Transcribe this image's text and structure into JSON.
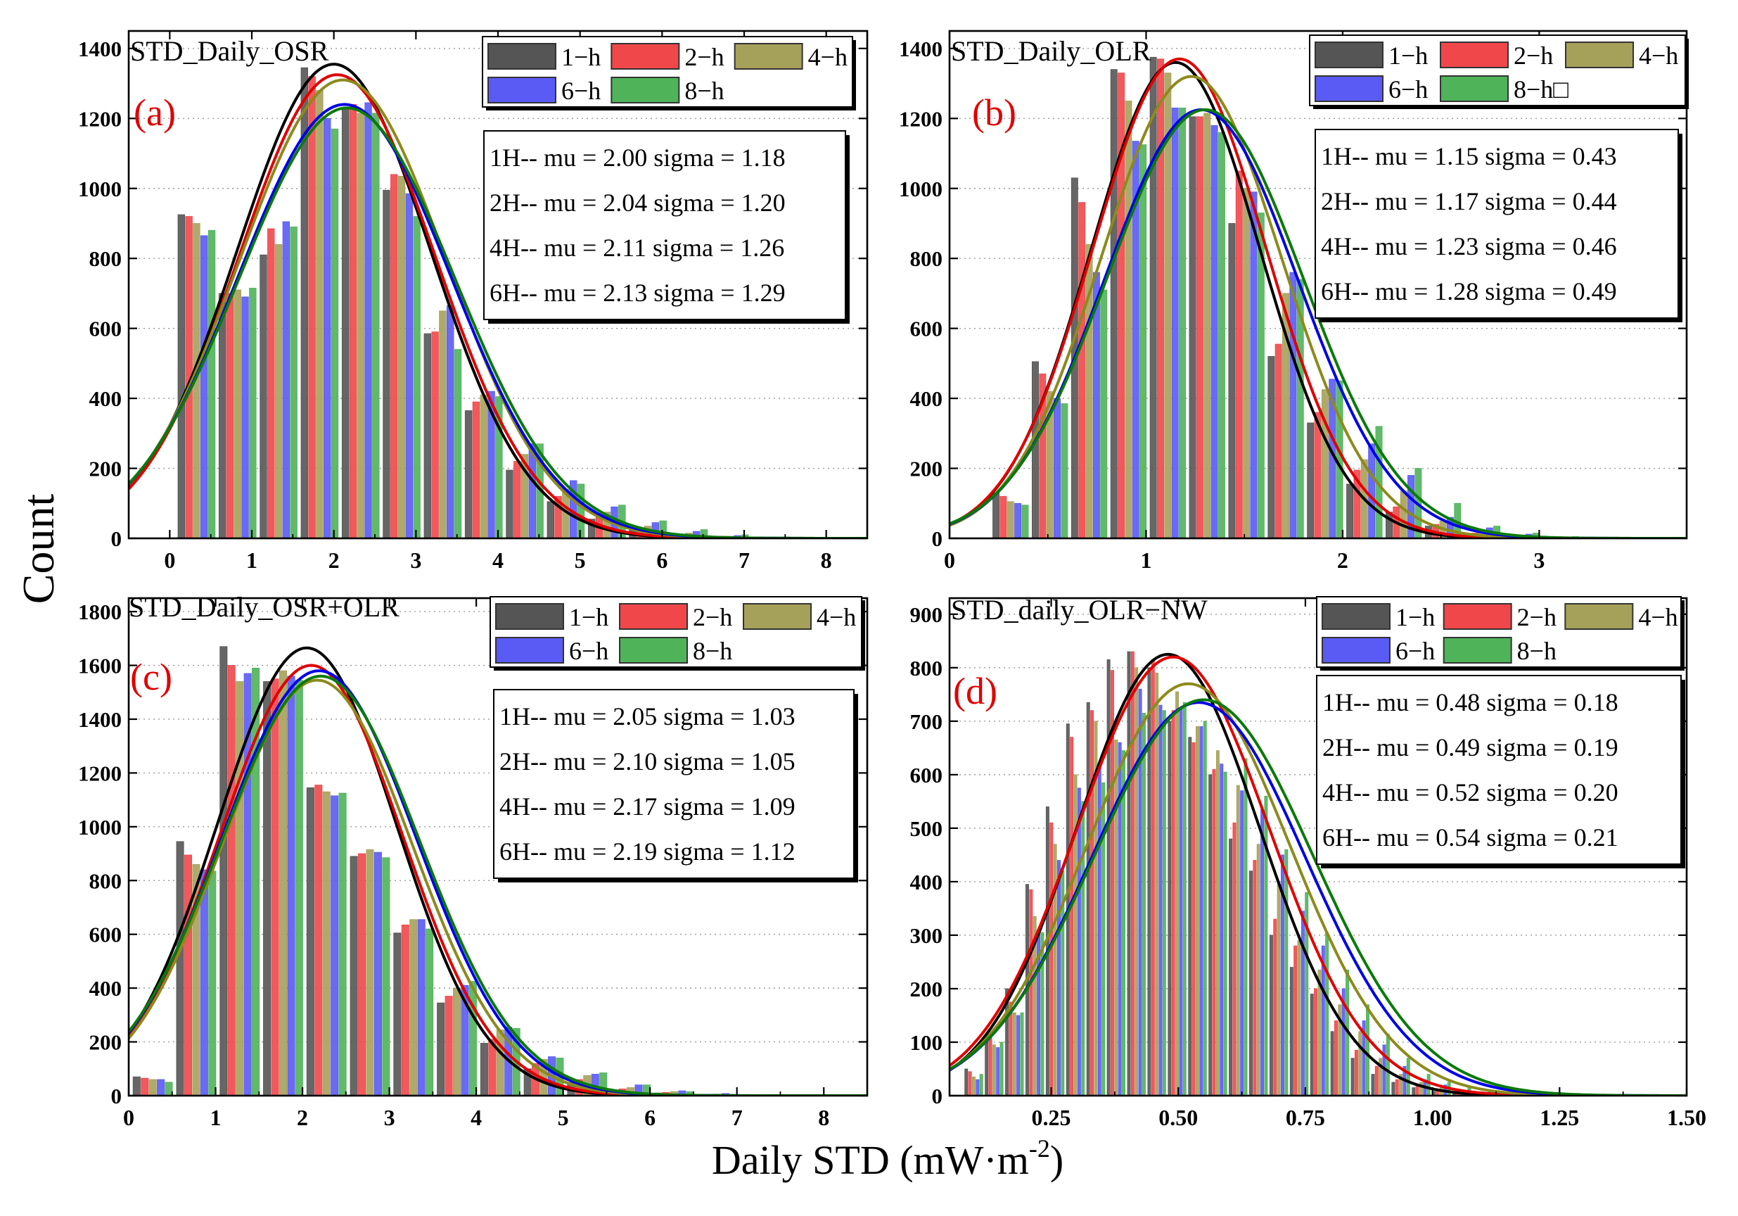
{
  "figure": {
    "ylabel": "Count",
    "xlabel_main": "Daily STD (mW·m",
    "xlabel_sup": "-2",
    "xlabel_close": ")"
  },
  "colors": {
    "1-h": "#555555",
    "2-h": "#f0474b",
    "4-h": "#a6a15a",
    "6-h": "#5a5af4",
    "8-h": "#4fb35a",
    "curve_1H": "#000000",
    "curve_2H": "#e00000",
    "curve_4H": "#8c8a1c",
    "curve_6H": "#0000e6",
    "curve_8H": "#0a7a0a",
    "panel_letter": "#e00000"
  },
  "chart_data": [
    {
      "type": "bar",
      "id": "a",
      "title": "STD_Daily_OSR",
      "panel_label": "(a)",
      "legend": [
        "1−h",
        "2−h",
        "4−h",
        "6−h",
        "8−h"
      ],
      "xlim": [
        -0.5,
        8.5
      ],
      "ylim": [
        0,
        1450
      ],
      "xticks": [
        0,
        1,
        2,
        3,
        4,
        5,
        6,
        7,
        8
      ],
      "xtick_labels": [
        "0",
        "1",
        "2",
        "3",
        "4",
        "5",
        "6",
        "7",
        "8"
      ],
      "yticks": [
        0,
        200,
        400,
        600,
        800,
        1000,
        1200,
        1400
      ],
      "ytick_labels": [
        "0",
        "200",
        "400",
        "600",
        "800",
        "1000",
        "1200",
        "1400"
      ],
      "bin_width": 0.5,
      "bins": [
        0.1,
        0.6,
        1.1,
        1.6,
        2.1,
        2.6,
        3.1,
        3.6,
        4.1,
        4.6,
        5.1,
        5.6,
        6.1,
        6.6,
        7.1,
        7.6,
        8.1
      ],
      "series": [
        {
          "name": "1-h",
          "values": [
            925,
            700,
            810,
            1345,
            1230,
            995,
            585,
            365,
            195,
            105,
            55,
            25,
            10,
            5,
            3,
            1,
            0
          ]
        },
        {
          "name": "2-h",
          "values": [
            920,
            700,
            885,
            1320,
            1240,
            1040,
            590,
            390,
            220,
            120,
            60,
            30,
            12,
            6,
            3,
            1,
            0
          ]
        },
        {
          "name": "4-h",
          "values": [
            900,
            710,
            840,
            1280,
            1215,
            1035,
            650,
            410,
            240,
            140,
            75,
            35,
            15,
            6,
            3,
            1,
            0
          ]
        },
        {
          "name": "6-h",
          "values": [
            865,
            690,
            905,
            1200,
            1245,
            985,
            665,
            420,
            270,
            165,
            90,
            45,
            20,
            8,
            3,
            1,
            0
          ]
        },
        {
          "name": "8-h",
          "values": [
            880,
            715,
            890,
            1170,
            1215,
            920,
            540,
            405,
            270,
            155,
            95,
            50,
            25,
            10,
            4,
            1,
            0
          ]
        }
      ],
      "fit_params": [
        {
          "name": "1H",
          "mu": 2.0,
          "sigma": 1.18,
          "peak": 1355
        },
        {
          "name": "2H",
          "mu": 2.04,
          "sigma": 1.2,
          "peak": 1325
        },
        {
          "name": "4H",
          "mu": 2.11,
          "sigma": 1.26,
          "peak": 1310
        },
        {
          "name": "6H",
          "mu": 2.13,
          "sigma": 1.29,
          "peak": 1240
        },
        {
          "name": "8H",
          "mu": 2.16,
          "sigma": 1.31,
          "peak": 1230
        }
      ],
      "stats_text": [
        "1H-- mu = 2.00  sigma = 1.18",
        "2H-- mu = 2.04 sigma = 1.20",
        "4H-- mu = 2.11 sigma = 1.26",
        "6H-- mu = 2.13 sigma = 1.29"
      ]
    },
    {
      "type": "bar",
      "id": "b",
      "title": "STD_Daily_OLR",
      "panel_label": "(b)",
      "legend": [
        "1−h",
        "2−h",
        "4−h",
        "6−h",
        "8−h□"
      ],
      "xlim": [
        0,
        3.75
      ],
      "ylim": [
        0,
        1450
      ],
      "xticks": [
        0,
        1,
        2,
        3
      ],
      "xtick_labels": [
        "0",
        "1",
        "2",
        "3"
      ],
      "yticks": [
        0,
        200,
        400,
        600,
        800,
        1000,
        1200,
        1400
      ],
      "ytick_labels": [
        "0",
        "200",
        "400",
        "600",
        "800",
        "1000",
        "1200",
        "1400"
      ],
      "bin_width": 0.2,
      "bins": [
        0.22,
        0.42,
        0.62,
        0.82,
        1.02,
        1.22,
        1.42,
        1.62,
        1.82,
        2.02,
        2.22,
        2.42,
        2.62,
        2.82,
        3.02,
        3.22,
        3.42
      ],
      "series": [
        {
          "name": "1-h",
          "values": [
            130,
            505,
            1030,
            1340,
            1375,
            1205,
            900,
            520,
            330,
            155,
            75,
            35,
            12,
            5,
            2,
            1,
            0
          ]
        },
        {
          "name": "2-h",
          "values": [
            120,
            470,
            960,
            1330,
            1370,
            1205,
            1050,
            555,
            360,
            195,
            90,
            40,
            15,
            6,
            2,
            1,
            0
          ]
        },
        {
          "name": "4-h",
          "values": [
            105,
            420,
            840,
            1250,
            1330,
            1215,
            1000,
            700,
            425,
            225,
            135,
            50,
            20,
            8,
            3,
            1,
            0
          ]
        },
        {
          "name": "6-h",
          "values": [
            100,
            400,
            760,
            1135,
            1230,
            1180,
            990,
            760,
            455,
            270,
            180,
            60,
            30,
            12,
            4,
            2,
            0
          ]
        },
        {
          "name": "8-h",
          "values": [
            95,
            385,
            710,
            1125,
            1230,
            1160,
            930,
            740,
            450,
            320,
            200,
            100,
            35,
            15,
            5,
            2,
            0
          ]
        }
      ],
      "fit_params": [
        {
          "name": "1H",
          "mu": 1.15,
          "sigma": 0.43,
          "peak": 1360
        },
        {
          "name": "2H",
          "mu": 1.17,
          "sigma": 0.44,
          "peak": 1370
        },
        {
          "name": "4H",
          "mu": 1.23,
          "sigma": 0.46,
          "peak": 1320
        },
        {
          "name": "6H",
          "mu": 1.28,
          "sigma": 0.49,
          "peak": 1225
        },
        {
          "name": "8H",
          "mu": 1.3,
          "sigma": 0.5,
          "peak": 1225
        }
      ],
      "stats_text": [
        "1H-- mu = 1.15  sigma = 0.43",
        "2H-- mu = 1.17 sigma = 0.44",
        "4H-- mu = 1.23 sigma = 0.46",
        "6H-- mu = 1.28 sigma = 0.49"
      ]
    },
    {
      "type": "bar",
      "id": "c",
      "title": "STD_Daily_OSR+OLR",
      "panel_label": "(c)",
      "legend": [
        "1−h",
        "2−h",
        "4−h",
        "6−h",
        "8−h"
      ],
      "xlim": [
        0,
        8.5
      ],
      "ylim": [
        0,
        1850
      ],
      "xticks": [
        0,
        1,
        2,
        3,
        4,
        5,
        6,
        7,
        8
      ],
      "xtick_labels": [
        "0",
        "1",
        "2",
        "3",
        "4",
        "5",
        "6",
        "7",
        "8"
      ],
      "yticks": [
        0,
        200,
        400,
        600,
        800,
        1000,
        1200,
        1400,
        1600,
        1800
      ],
      "ytick_labels": [
        "0",
        "200",
        "400",
        "600",
        "800",
        "1000",
        "1200",
        "1400",
        "1600",
        "1800"
      ],
      "bin_width": 0.5,
      "bins": [
        0.05,
        0.55,
        1.05,
        1.55,
        2.05,
        2.55,
        3.05,
        3.55,
        4.05,
        4.55,
        5.05,
        5.55,
        6.05,
        6.55,
        7.05,
        7.55
      ],
      "series": [
        {
          "name": "1-h",
          "values": [
            70,
            945,
            1670,
            1540,
            1145,
            890,
            605,
            345,
            195,
            100,
            50,
            20,
            10,
            4,
            2,
            1
          ]
        },
        {
          "name": "2-h",
          "values": [
            65,
            895,
            1600,
            1550,
            1155,
            900,
            635,
            370,
            210,
            120,
            60,
            25,
            12,
            5,
            2,
            1
          ]
        },
        {
          "name": "4-h",
          "values": [
            60,
            860,
            1540,
            1580,
            1130,
            915,
            655,
            400,
            245,
            135,
            75,
            30,
            15,
            6,
            2,
            1
          ]
        },
        {
          "name": "6-h",
          "values": [
            60,
            840,
            1570,
            1560,
            1115,
            905,
            655,
            410,
            255,
            145,
            80,
            40,
            18,
            8,
            3,
            1
          ]
        },
        {
          "name": "8-h",
          "values": [
            50,
            835,
            1590,
            1545,
            1125,
            885,
            620,
            425,
            250,
            140,
            85,
            40,
            15,
            5,
            2,
            1
          ]
        }
      ],
      "fit_params": [
        {
          "name": "1H",
          "mu": 2.05,
          "sigma": 1.03,
          "peak": 1665
        },
        {
          "name": "2H",
          "mu": 2.1,
          "sigma": 1.05,
          "peak": 1600
        },
        {
          "name": "4H",
          "mu": 2.17,
          "sigma": 1.09,
          "peak": 1545
        },
        {
          "name": "6H",
          "mu": 2.19,
          "sigma": 1.12,
          "peak": 1580
        },
        {
          "name": "8H",
          "mu": 2.21,
          "sigma": 1.14,
          "peak": 1560
        }
      ],
      "stats_text": [
        "1H-- mu = 2.05  sigma = 1.03",
        "2H-- mu = 2.10 sigma = 1.05",
        "4H-- mu = 2.17 sigma = 1.09",
        "6H-- mu = 2.19 sigma = 1.12"
      ]
    },
    {
      "type": "bar",
      "id": "d",
      "title": "STD_daily_OLR−NW",
      "panel_label": "(d)",
      "legend": [
        "1−h",
        "2−h",
        "4−h",
        "6−h",
        "8−h"
      ],
      "xlim": [
        0.05,
        1.5
      ],
      "ylim": [
        0,
        930
      ],
      "xticks": [
        0.25,
        0.5,
        0.75,
        1.0,
        1.25,
        1.5
      ],
      "xtick_labels": [
        "0.25",
        "0.50",
        "0.75",
        "1.00",
        "1.25",
        "1.50"
      ],
      "yticks": [
        0,
        100,
        200,
        300,
        400,
        500,
        600,
        700,
        800,
        900
      ],
      "ytick_labels": [
        "0",
        "100",
        "200",
        "300",
        "400",
        "500",
        "600",
        "700",
        "800",
        "900"
      ],
      "bin_width": 0.04,
      "bins": [
        0.08,
        0.12,
        0.16,
        0.2,
        0.24,
        0.28,
        0.32,
        0.36,
        0.4,
        0.44,
        0.48,
        0.52,
        0.56,
        0.6,
        0.64,
        0.68,
        0.72,
        0.76,
        0.8,
        0.84,
        0.88,
        0.92,
        0.96,
        1.0,
        1.04,
        1.08,
        1.12,
        1.16,
        1.2,
        1.24,
        1.28
      ],
      "series": [
        {
          "name": "1-h",
          "values": [
            50,
            115,
            200,
            395,
            540,
            695,
            735,
            815,
            830,
            800,
            700,
            670,
            600,
            480,
            420,
            300,
            240,
            190,
            120,
            70,
            40,
            25,
            15,
            8,
            5,
            3,
            2,
            1,
            1,
            0,
            0
          ]
        },
        {
          "name": "2-h",
          "values": [
            45,
            110,
            175,
            385,
            510,
            670,
            720,
            795,
            830,
            815,
            720,
            660,
            610,
            510,
            440,
            330,
            280,
            200,
            140,
            85,
            55,
            30,
            20,
            10,
            6,
            3,
            2,
            1,
            1,
            0,
            0
          ]
        },
        {
          "name": "4-h",
          "values": [
            35,
            95,
            155,
            335,
            470,
            600,
            700,
            665,
            800,
            790,
            755,
            690,
            645,
            580,
            470,
            395,
            290,
            235,
            170,
            120,
            70,
            40,
            25,
            15,
            8,
            4,
            2,
            1,
            1,
            0,
            0
          ]
        },
        {
          "name": "6-h",
          "values": [
            30,
            90,
            150,
            310,
            440,
            575,
            620,
            660,
            760,
            730,
            725,
            690,
            620,
            570,
            535,
            450,
            345,
            280,
            200,
            140,
            95,
            55,
            30,
            20,
            10,
            6,
            3,
            2,
            1,
            1,
            0
          ]
        },
        {
          "name": "8-h",
          "values": [
            40,
            100,
            155,
            305,
            420,
            550,
            585,
            645,
            715,
            720,
            735,
            700,
            605,
            630,
            560,
            460,
            380,
            305,
            235,
            170,
            115,
            70,
            40,
            25,
            15,
            8,
            5,
            3,
            2,
            1,
            1
          ]
        }
      ],
      "fit_params": [
        {
          "name": "1H",
          "mu": 0.48,
          "sigma": 0.18,
          "peak": 825
        },
        {
          "name": "2H",
          "mu": 0.49,
          "sigma": 0.19,
          "peak": 820
        },
        {
          "name": "4H",
          "mu": 0.52,
          "sigma": 0.2,
          "peak": 770
        },
        {
          "name": "6H",
          "mu": 0.54,
          "sigma": 0.21,
          "peak": 735
        },
        {
          "name": "8H",
          "mu": 0.55,
          "sigma": 0.215,
          "peak": 740
        }
      ],
      "stats_text": [
        "1H-- mu = 0.48  sigma = 0.18",
        "2H-- mu = 0.49 sigma = 0.19",
        "4H-- mu = 0.52 sigma = 0.20",
        "6H-- mu = 0.54 sigma = 0.21"
      ]
    }
  ]
}
